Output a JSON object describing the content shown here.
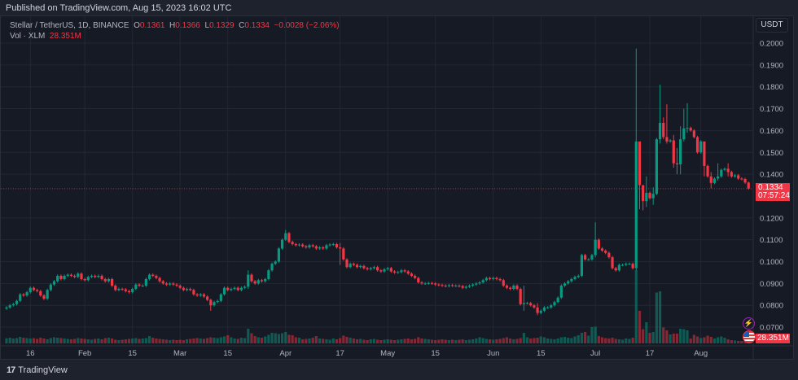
{
  "published": "Published on TradingView.com, Aug 15, 2023 16:02 UTC",
  "legend": {
    "symbol": "Stellar / TetherUS, 1D, BINANCE",
    "o_label": "O",
    "o": "0.1361",
    "h_label": "H",
    "h": "0.1366",
    "l_label": "L",
    "l": "0.1329",
    "c_label": "C",
    "c": "0.1334",
    "change": "−0.0028 (−2.06%)",
    "vol_label": "Vol · XLM",
    "vol": "28.351M"
  },
  "currency_button": "USDT",
  "last_price": "0.1334",
  "countdown": "07:57:24",
  "last_volume": "28.351M",
  "footer_brand": "TradingView",
  "icons": {
    "events": "lightning-icon",
    "country": "us-flag-icon",
    "logo": "tradingview-logo-icon"
  },
  "colors": {
    "up": "#089981",
    "down": "#f23645",
    "background": "#161a25",
    "grid": "#232733"
  },
  "chart_data": {
    "type": "candlestick",
    "interval": "1D",
    "first_date": "2023-01-09",
    "last_date": "2023-08-15",
    "ylim": [
      0.067,
      0.203
    ],
    "y_ticks": [
      "0.2000",
      "0.1900",
      "0.1800",
      "0.1700",
      "0.1600",
      "0.1500",
      "0.1400",
      "0.1200",
      "0.1100",
      "0.1000",
      "0.0900",
      "0.0800",
      "0.0700"
    ],
    "x_ticks": [
      {
        "label": "16",
        "day": 7
      },
      {
        "label": "Feb",
        "day": 23
      },
      {
        "label": "15",
        "day": 37
      },
      {
        "label": "Mar",
        "day": 51
      },
      {
        "label": "15",
        "day": 65
      },
      {
        "label": "Apr",
        "day": 82
      },
      {
        "label": "17",
        "day": 98
      },
      {
        "label": "May",
        "day": 112
      },
      {
        "label": "15",
        "day": 126
      },
      {
        "label": "Jun",
        "day": 143
      },
      {
        "label": "15",
        "day": 157
      },
      {
        "label": "Jul",
        "day": 173
      },
      {
        "label": "17",
        "day": 189
      },
      {
        "label": "Aug",
        "day": 204
      }
    ],
    "grid": true,
    "first_open": 0.0785,
    "close": [
      0.079,
      0.08,
      0.0805,
      0.082,
      0.085,
      0.0845,
      0.086,
      0.088,
      0.087,
      0.0865,
      0.0845,
      0.083,
      0.087,
      0.0895,
      0.091,
      0.0935,
      0.092,
      0.0935,
      0.094,
      0.0935,
      0.093,
      0.0945,
      0.092,
      0.0915,
      0.093,
      0.0935,
      0.093,
      0.0935,
      0.092,
      0.091,
      0.092,
      0.089,
      0.087,
      0.0875,
      0.0873,
      0.0865,
      0.086,
      0.0875,
      0.0895,
      0.089,
      0.089,
      0.092,
      0.094,
      0.0935,
      0.0925,
      0.091,
      0.09,
      0.0895,
      0.09,
      0.0895,
      0.089,
      0.088,
      0.087,
      0.0875,
      0.087,
      0.085,
      0.0845,
      0.085,
      0.084,
      0.0825,
      0.08,
      0.0815,
      0.082,
      0.085,
      0.088,
      0.087,
      0.0875,
      0.088,
      0.087,
      0.088,
      0.0885,
      0.094,
      0.091,
      0.09,
      0.0915,
      0.091,
      0.092,
      0.096,
      0.099,
      0.1,
      0.106,
      0.11,
      0.113,
      0.109,
      0.108,
      0.1075,
      0.1078,
      0.107,
      0.1065,
      0.1075,
      0.107,
      0.106,
      0.1065,
      0.106,
      0.1075,
      0.1078,
      0.108,
      0.1065,
      0.106,
      0.101,
      0.0975,
      0.099,
      0.0985,
      0.0975,
      0.098,
      0.097,
      0.0965,
      0.097,
      0.0975,
      0.096,
      0.0955,
      0.0965,
      0.097,
      0.0955,
      0.095,
      0.0952,
      0.096,
      0.0955,
      0.0945,
      0.0935,
      0.0925,
      0.0905,
      0.09,
      0.09,
      0.0902,
      0.09,
      0.0895,
      0.0893,
      0.089,
      0.0888,
      0.0892,
      0.089,
      0.089,
      0.0888,
      0.088,
      0.0885,
      0.089,
      0.0895,
      0.09,
      0.0905,
      0.0915,
      0.0925,
      0.092,
      0.0925,
      0.092,
      0.0915,
      0.089,
      0.088,
      0.0875,
      0.089,
      0.0875,
      0.0805,
      0.081,
      0.081,
      0.08,
      0.079,
      0.0765,
      0.0775,
      0.079,
      0.079,
      0.08,
      0.0815,
      0.0835,
      0.089,
      0.09,
      0.091,
      0.092,
      0.093,
      0.0935,
      0.103,
      0.101,
      0.101,
      0.103,
      0.11,
      0.106,
      0.105,
      0.104,
      0.102,
      0.097,
      0.096,
      0.0985,
      0.0985,
      0.099,
      0.099,
      0.097,
      0.155,
      0.135,
      0.1277,
      0.1315,
      0.129,
      0.131,
      0.156,
      0.1635,
      0.157,
      0.155,
      0.1555,
      0.145,
      0.1445,
      0.156,
      0.161,
      0.1612,
      0.16,
      0.157,
      0.15,
      0.155,
      0.1438,
      0.139,
      0.136,
      0.138,
      0.139,
      0.142,
      0.1425,
      0.141,
      0.139,
      0.1395,
      0.138,
      0.1378,
      0.1362,
      0.1334
    ],
    "wick_extremes": {
      "71": [
        0.096,
        0.0875
      ],
      "82": [
        0.1145,
        0.1095
      ],
      "98": [
        0.1085,
        0.0985
      ],
      "152": [
        0.089,
        0.0775
      ],
      "156": [
        0.081,
        0.0755
      ],
      "60": [
        0.083,
        0.0775
      ],
      "173": [
        0.118,
        0.102
      ],
      "185": [
        0.1975,
        0.096
      ],
      "186": [
        0.152,
        0.124
      ],
      "187": [
        0.135,
        0.1235
      ],
      "188": [
        0.139,
        0.125
      ],
      "190": [
        0.134,
        0.126
      ],
      "192": [
        0.181,
        0.154
      ],
      "193": [
        0.166,
        0.156
      ],
      "194": [
        0.172,
        0.154
      ],
      "196": [
        0.158,
        0.143
      ],
      "197": [
        0.152,
        0.14
      ],
      "198": [
        0.162,
        0.14
      ],
      "199": [
        0.17,
        0.155
      ],
      "200": [
        0.1725,
        0.159
      ],
      "205": [
        0.148,
        0.139
      ],
      "207": [
        0.141,
        0.1335
      ],
      "209": [
        0.145,
        0.137
      ],
      "212": [
        0.145,
        0.139
      ],
      "218": [
        0.1366,
        0.1329
      ]
    },
    "volume_millions": [
      25,
      28,
      24,
      26,
      32,
      28,
      26,
      24,
      26,
      22,
      28,
      24,
      20,
      26,
      30,
      28,
      26,
      24,
      22,
      20,
      22,
      26,
      24,
      22,
      20,
      18,
      22,
      24,
      20,
      26,
      28,
      24,
      18,
      16,
      18,
      20,
      22,
      24,
      26,
      22,
      24,
      26,
      36,
      28,
      24,
      22,
      20,
      18,
      16,
      18,
      16,
      18,
      16,
      20,
      22,
      24,
      26,
      24,
      22,
      26,
      30,
      28,
      26,
      30,
      34,
      40,
      30,
      24,
      22,
      28,
      26,
      72,
      50,
      36,
      30,
      28,
      34,
      42,
      52,
      50,
      46,
      50,
      56,
      42,
      40,
      30,
      28,
      20,
      22,
      24,
      28,
      36,
      24,
      22,
      20,
      18,
      24,
      20,
      26,
      38,
      32,
      28,
      24,
      20,
      22,
      18,
      16,
      20,
      22,
      18,
      16,
      18,
      20,
      18,
      16,
      18,
      20,
      22,
      24,
      20,
      22,
      30,
      24,
      22,
      20,
      18,
      16,
      18,
      20,
      18,
      16,
      18,
      16,
      18,
      20,
      16,
      18,
      20,
      24,
      30,
      26,
      22,
      20,
      18,
      20,
      22,
      26,
      30,
      24,
      20,
      22,
      26,
      52,
      30,
      24,
      26,
      28,
      34,
      30,
      24,
      22,
      20,
      24,
      30,
      32,
      28,
      26,
      34,
      40,
      52,
      56,
      38,
      80,
      82,
      36,
      30,
      26,
      24,
      28,
      22,
      20,
      18,
      24,
      22,
      28,
      360,
      160,
      70,
      104,
      52,
      56,
      250,
      256,
      78,
      64,
      44,
      48,
      48,
      72,
      70,
      64,
      24,
      42,
      34,
      26,
      30,
      38,
      32,
      24,
      30,
      34,
      28,
      20,
      16,
      14,
      12,
      12,
      18,
      28.351
    ]
  }
}
